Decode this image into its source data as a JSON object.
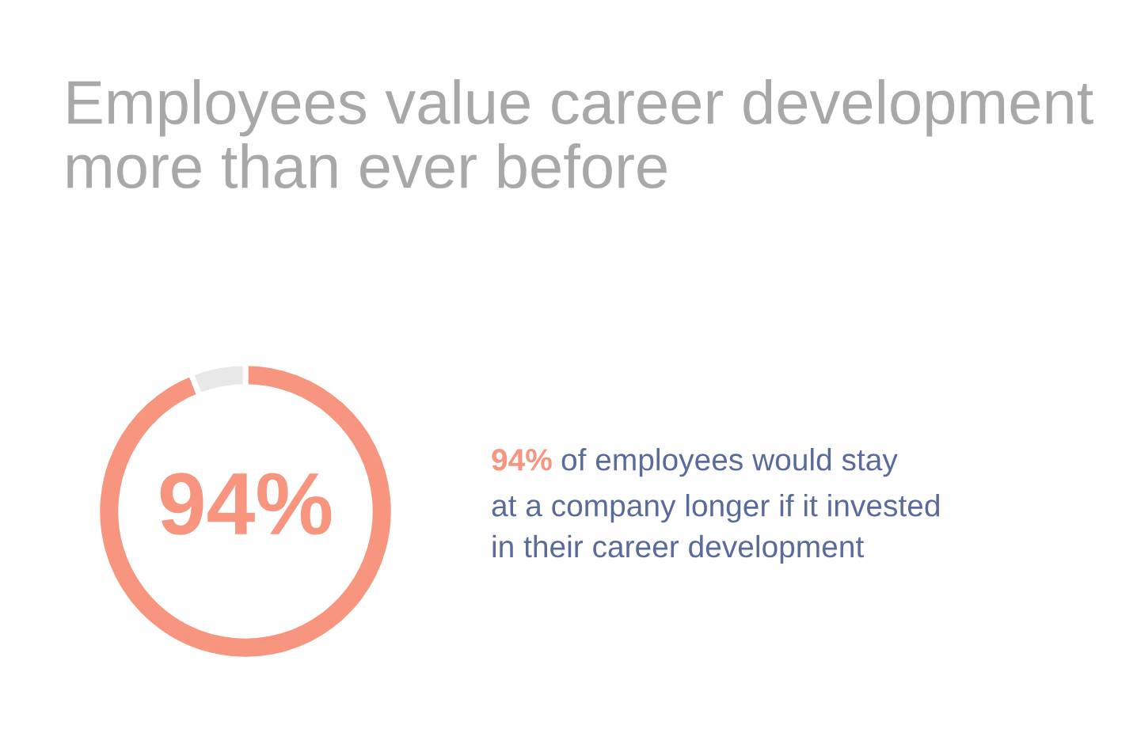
{
  "chart_data": {
    "type": "donut",
    "title": "Employees value career development\nmore than ever before",
    "categories": [
      null,
      null
    ],
    "values": [
      94,
      6
    ],
    "colors": [
      "#f7957f",
      "#e8e8e8"
    ],
    "annotations": [
      "94%",
      "94% of employees would stay\nat a company longer if it invested\nin their career development"
    ]
  }
}
